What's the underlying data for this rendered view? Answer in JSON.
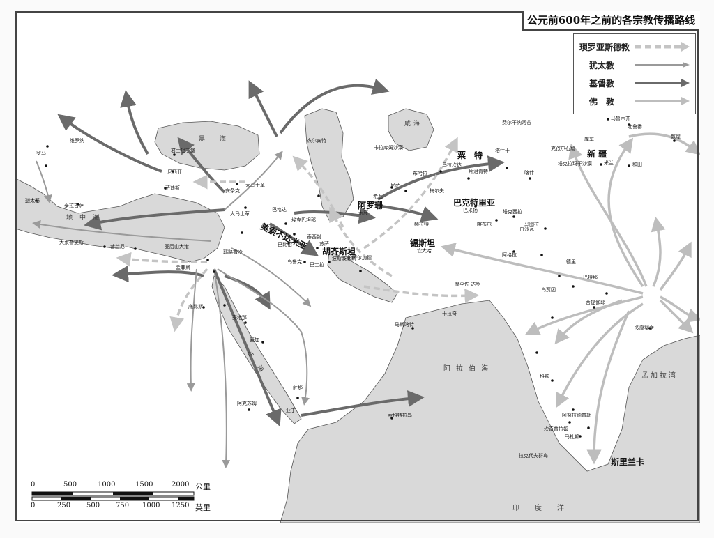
{
  "title": "公元前600年之前的各宗教传播路线",
  "legend": [
    {
      "label": "琐罗亚斯德教",
      "style": "dashed"
    },
    {
      "label": "犹太教",
      "style": "thin"
    },
    {
      "label": "基督教",
      "style": "thick"
    },
    {
      "label": "佛　教",
      "style": "light"
    }
  ],
  "colors": {
    "sea": "#ffffff",
    "land": "#d9d9d9",
    "christian": "#6a6a6a",
    "jewish": "#9a9a9a",
    "zoro": "#c4c4c4",
    "buddhist": "#bdbdbd"
  },
  "regions": [
    {
      "name": "粟　特",
      "id": "sogdiana"
    },
    {
      "name": "巴克特里亚",
      "id": "bactria"
    },
    {
      "name": "锡斯坦",
      "id": "sistan"
    },
    {
      "name": "胡齐斯坦",
      "id": "khuzestan"
    },
    {
      "name": "美索不达米亚",
      "id": "mesopotamia"
    },
    {
      "name": "阿罗珊",
      "id": "khorasan"
    },
    {
      "name": "斯里兰卡",
      "id": "srilanka"
    },
    {
      "name": "新 疆",
      "id": "xinjiang"
    }
  ],
  "seas": [
    {
      "name": "阿拉伯海",
      "id": "arabian-sea"
    },
    {
      "name": "孟加拉湾",
      "id": "bay-bengal"
    },
    {
      "name": "印度洋",
      "id": "indian-ocean"
    },
    {
      "name": "黑　海",
      "id": "black-sea"
    },
    {
      "name": "咸海",
      "id": "aral-sea"
    },
    {
      "name": "地中海",
      "id": "med-sea"
    },
    {
      "name": "红　海",
      "id": "red-sea"
    }
  ],
  "places": [
    {
      "name": "维罗纳"
    },
    {
      "name": "罗马"
    },
    {
      "name": "迦太基"
    },
    {
      "name": "泰拉吉萨"
    },
    {
      "name": "大莱普提斯"
    },
    {
      "name": "昔兰尼"
    },
    {
      "name": "亚历山大港"
    },
    {
      "name": "孟菲斯"
    },
    {
      "name": "底比斯"
    },
    {
      "name": "君士坦丁堡"
    },
    {
      "name": "尼西亚"
    },
    {
      "name": "萨迪斯"
    },
    {
      "name": "安条克"
    },
    {
      "name": "大马士革"
    },
    {
      "name": "耶路撒冷"
    },
    {
      "name": "巴格达"
    },
    {
      "name": "泰西封"
    },
    {
      "name": "巴比伦"
    },
    {
      "name": "苏萨"
    },
    {
      "name": "乌鲁克"
    },
    {
      "name": "巴士拉"
    },
    {
      "name": "埃克巴坦那"
    },
    {
      "name": "波斯波利斯"
    },
    {
      "name": "帕萨尔加德"
    },
    {
      "name": "尼萨"
    },
    {
      "name": "木鹿"
    },
    {
      "name": "马拉坎达"
    },
    {
      "name": "片治肯特"
    },
    {
      "name": "塔什干"
    },
    {
      "name": "喀什"
    },
    {
      "name": "巴米扬"
    },
    {
      "name": "塔克西拉"
    },
    {
      "name": "马图拉"
    },
    {
      "name": "巴特那"
    },
    {
      "name": "菩提伽耶"
    },
    {
      "name": "乌贾因"
    },
    {
      "name": "麦地那"
    },
    {
      "name": "麦加"
    },
    {
      "name": "萨那"
    },
    {
      "name": "马斯喀特"
    },
    {
      "name": "阿克苏姆"
    },
    {
      "name": "索科特拉岛"
    },
    {
      "name": "拉克代夫群岛"
    },
    {
      "name": "敦煌"
    },
    {
      "name": "吐鲁番"
    },
    {
      "name": "库车"
    },
    {
      "name": "和田"
    },
    {
      "name": "亚丁"
    },
    {
      "name": "米兰"
    },
    {
      "name": "卡拉库姆沙漠"
    },
    {
      "name": "大马士革"
    },
    {
      "name": "杰尔宾特"
    },
    {
      "name": "马鲁木齐"
    },
    {
      "name": "克孜尔石窟"
    },
    {
      "name": "塔克拉玛干沙漠"
    },
    {
      "name": "费尔干纳河谷"
    },
    {
      "name": "布哈拉"
    },
    {
      "name": "希瓦"
    },
    {
      "name": "梅尔夫"
    },
    {
      "name": "赫拉特"
    },
    {
      "name": "坎大哈"
    },
    {
      "name": "喀布尔"
    },
    {
      "name": "白沙瓦"
    },
    {
      "name": "摩亨佐·达罗"
    },
    {
      "name": "德里"
    },
    {
      "name": "阿格拉"
    },
    {
      "name": "卡拉奇"
    },
    {
      "name": "科钦"
    },
    {
      "name": "马杜赖"
    },
    {
      "name": "坎奇普拉姆"
    },
    {
      "name": "阿努拉德普勒"
    },
    {
      "name": "多摩梨帝"
    }
  ],
  "scale": {
    "km_label": "公里",
    "mi_label": "英里",
    "km_ticks": [
      "0",
      "500",
      "1000",
      "1500",
      "2000"
    ],
    "mi_ticks": [
      "0",
      "250",
      "500",
      "750",
      "1000",
      "1250"
    ]
  }
}
